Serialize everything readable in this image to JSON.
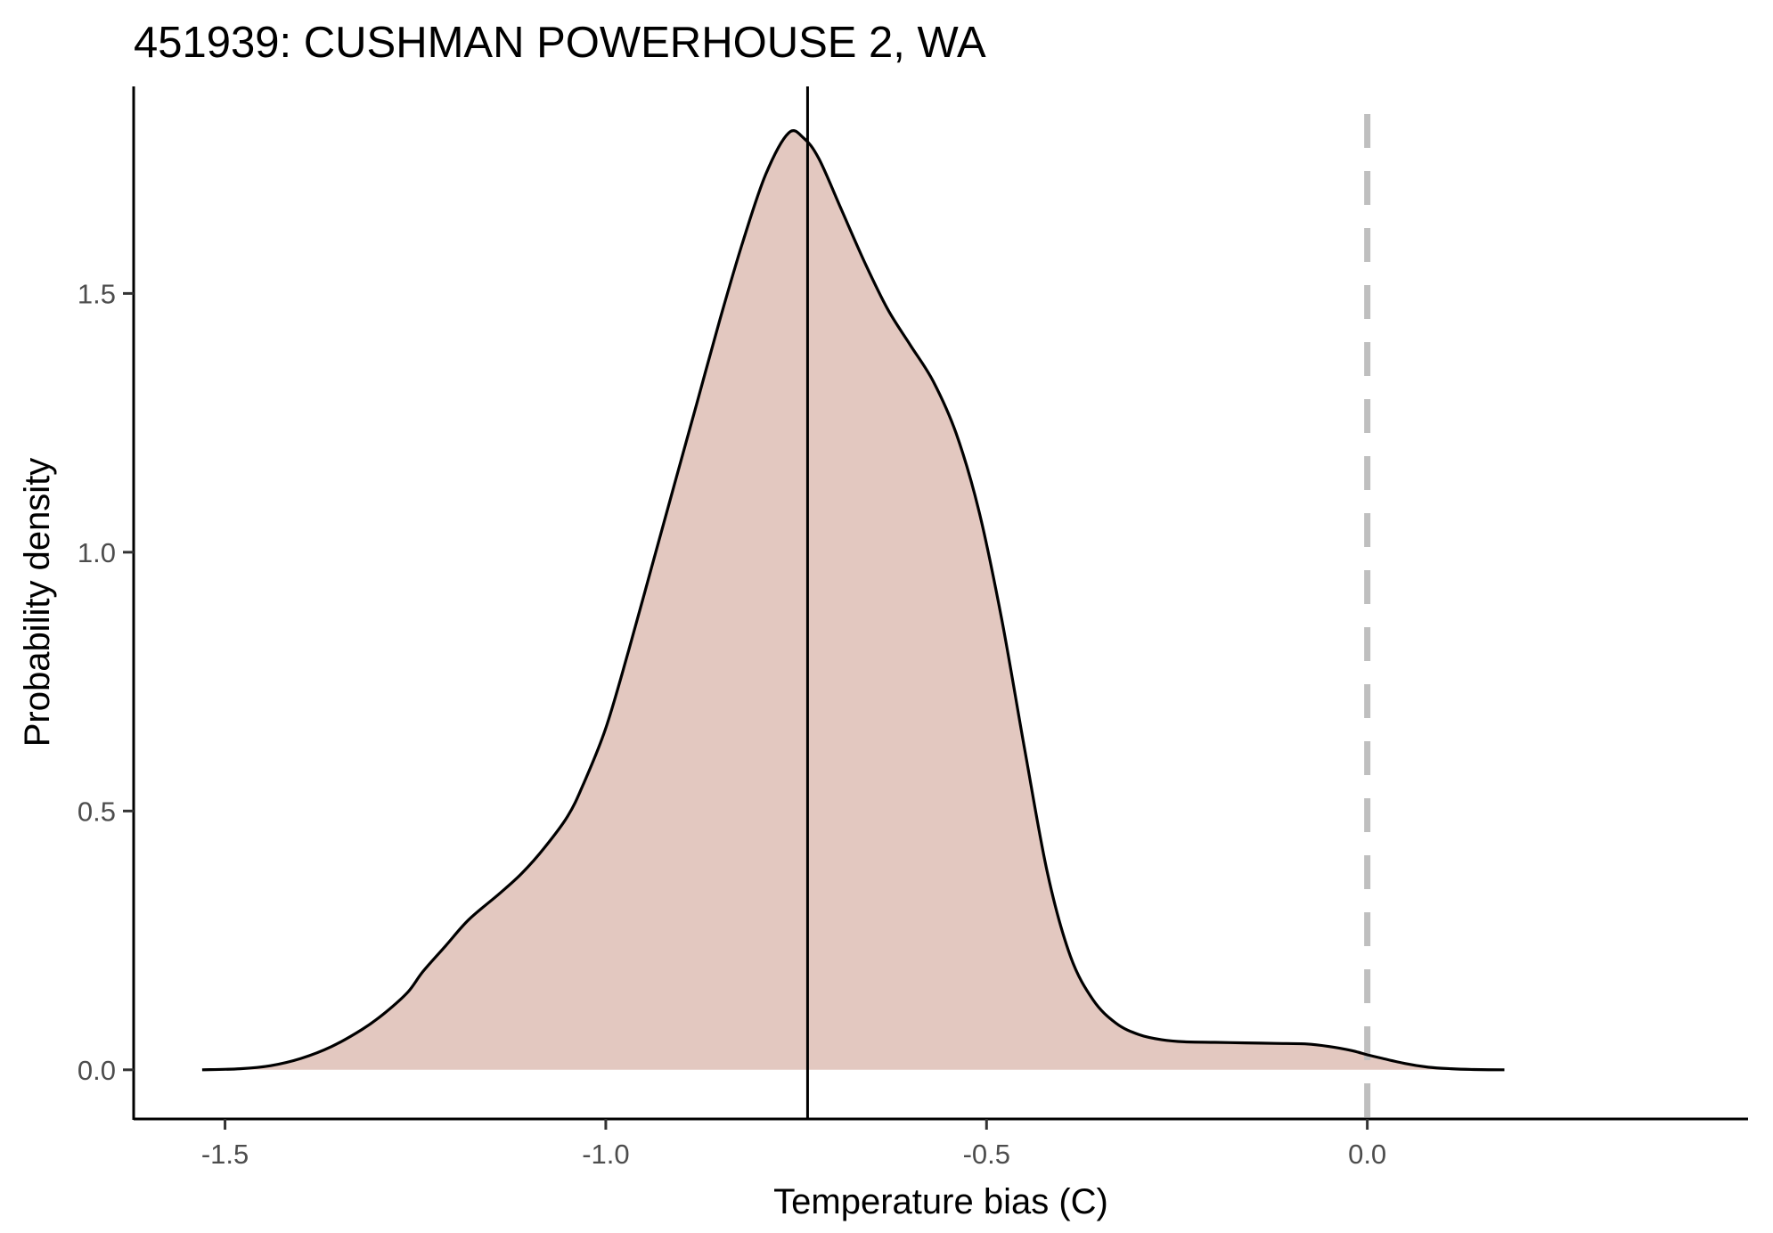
{
  "chart_data": {
    "type": "area",
    "title": "451939: CUSHMAN POWERHOUSE 2, WA",
    "xlabel": "Temperature bias (C)",
    "ylabel": "Probability density",
    "xlim": [
      -1.62,
      0.5
    ],
    "ylim": [
      -0.095,
      1.9
    ],
    "x_ticks": [
      {
        "value": -1.5,
        "label": "-1.5"
      },
      {
        "value": -1.0,
        "label": "-1.0"
      },
      {
        "value": -0.5,
        "label": "-0.5"
      },
      {
        "value": 0.0,
        "label": "0.0"
      }
    ],
    "y_ticks": [
      {
        "value": 0.0,
        "label": "0.0"
      },
      {
        "value": 0.5,
        "label": "0.5"
      },
      {
        "value": 1.0,
        "label": "1.0"
      },
      {
        "value": 1.5,
        "label": "1.5"
      }
    ],
    "grid": false,
    "fill_color": "#e3c8c0",
    "line_color": "#000000",
    "density": {
      "x": [
        -1.53,
        -1.48,
        -1.44,
        -1.4,
        -1.36,
        -1.32,
        -1.29,
        -1.26,
        -1.24,
        -1.21,
        -1.18,
        -1.14,
        -1.11,
        -1.08,
        -1.05,
        -1.03,
        -1.0,
        -0.97,
        -0.94,
        -0.91,
        -0.88,
        -0.85,
        -0.82,
        -0.79,
        -0.76,
        -0.74,
        -0.72,
        -0.69,
        -0.66,
        -0.63,
        -0.6,
        -0.57,
        -0.54,
        -0.51,
        -0.48,
        -0.45,
        -0.42,
        -0.39,
        -0.36,
        -0.33,
        -0.3,
        -0.27,
        -0.24,
        -0.2,
        -0.16,
        -0.12,
        -0.08,
        -0.05,
        -0.02,
        0.0,
        0.02,
        0.05,
        0.08,
        0.11,
        0.14,
        0.18
      ],
      "y": [
        0.0,
        0.002,
        0.008,
        0.022,
        0.045,
        0.078,
        0.11,
        0.15,
        0.19,
        0.24,
        0.29,
        0.34,
        0.38,
        0.43,
        0.49,
        0.55,
        0.66,
        0.81,
        0.97,
        1.13,
        1.29,
        1.45,
        1.6,
        1.73,
        1.81,
        1.8,
        1.76,
        1.66,
        1.56,
        1.47,
        1.4,
        1.33,
        1.23,
        1.08,
        0.87,
        0.62,
        0.38,
        0.22,
        0.135,
        0.09,
        0.068,
        0.058,
        0.054,
        0.053,
        0.052,
        0.051,
        0.05,
        0.045,
        0.037,
        0.029,
        0.022,
        0.012,
        0.005,
        0.002,
        0.0005,
        0.0
      ]
    },
    "mean_line_x": -0.735,
    "reference_line": {
      "x": 0.0,
      "style": "dashed",
      "color": "#bfbfbf"
    }
  }
}
